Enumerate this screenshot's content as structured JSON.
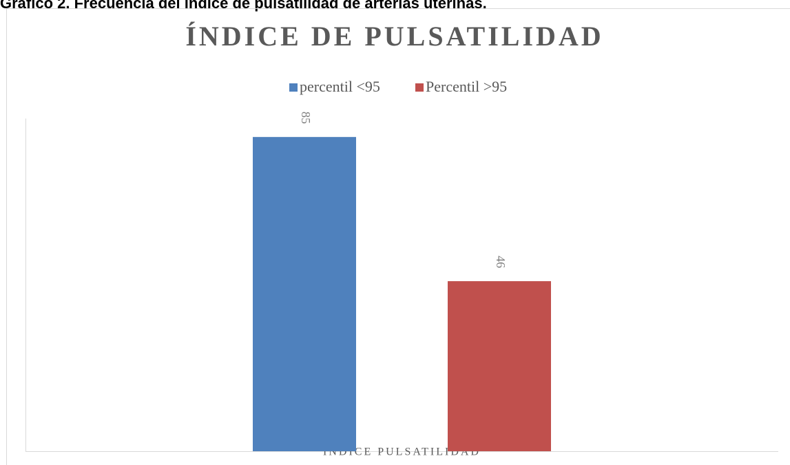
{
  "caption": "Gráfico 2. Frecuencia del índice de pulsatilidad de arterias uterinas.",
  "chart_data": {
    "type": "bar",
    "title": "ÍNDICE DE PULSATILIDAD",
    "categories": [
      "INDICE PULSATILIDAD"
    ],
    "series": [
      {
        "name": "percentil <95",
        "color": "#4f81bd",
        "values": [
          85
        ]
      },
      {
        "name": "Percentil >95",
        "color": "#c0504d",
        "values": [
          46
        ]
      }
    ],
    "ylim": [
      0,
      90
    ],
    "legend": "top"
  }
}
